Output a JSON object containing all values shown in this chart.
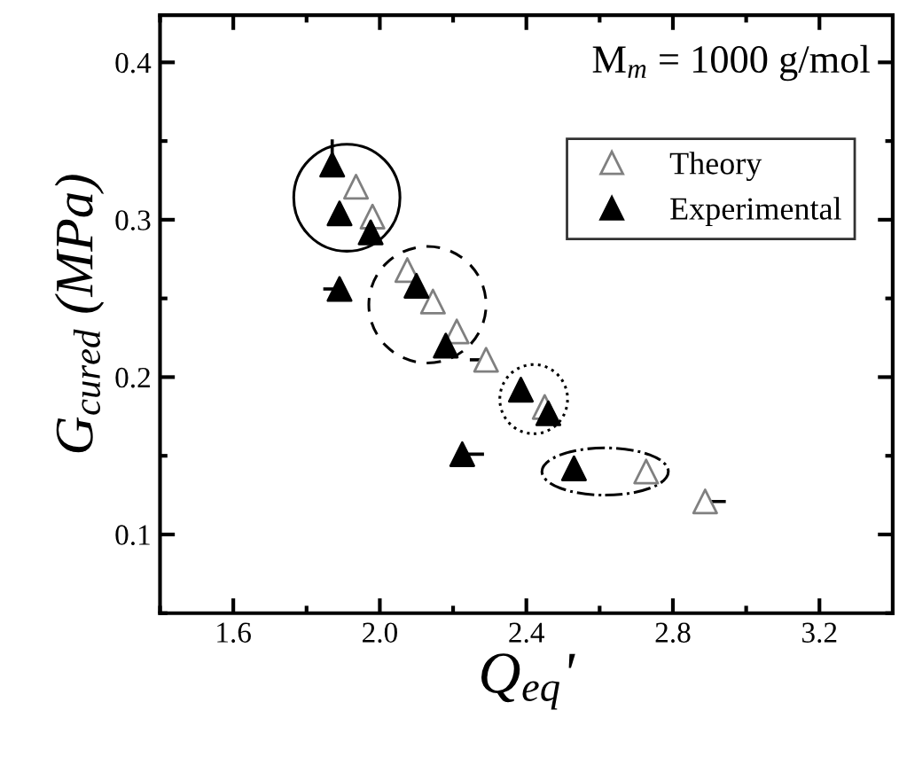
{
  "chart_data": {
    "type": "scatter",
    "xlabel": "Q$_{eq}$'",
    "ylabel": "G$_{cured}$ (MPa)",
    "annotations": [
      "M$_{m}$ = 1000 g/mol"
    ],
    "xlim": [
      1.4,
      3.4
    ],
    "ylim": [
      0.05,
      0.43
    ],
    "xticks": [
      1.6,
      {
        "value": 2.0,
        "label": "2.0"
      },
      2.4,
      2.8,
      3.2
    ],
    "yticks": [
      0.1,
      0.2,
      0.3,
      0.4
    ],
    "grid": false,
    "legend": "top right",
    "marker": "triangle",
    "series": [
      {
        "name": "Theory",
        "color": "#808080",
        "x": [
          1.935,
          1.98,
          2.075,
          2.145,
          2.21,
          2.29,
          2.45,
          2.727,
          2.888
        ],
        "values": [
          0.321,
          0.302,
          0.268,
          0.248,
          0.229,
          0.211,
          0.181,
          0.14,
          0.121
        ],
        "xerrors": [
          null,
          null,
          null,
          null,
          null,
          [
            2.25,
            2.29
          ],
          null,
          null,
          [
            2.888,
            2.94
          ]
        ]
      },
      {
        "name": "Experimental",
        "color": "#000000",
        "x": [
          1.87,
          1.89,
          1.975,
          1.89,
          2.1,
          2.18,
          2.225,
          2.385,
          2.46,
          2.53
        ],
        "values": [
          0.335,
          0.304,
          0.292,
          0.256,
          0.258,
          0.22,
          0.151,
          0.192,
          0.177,
          0.142
        ],
        "errors": [
          [
            0.335,
            0.35
          ],
          null,
          null,
          null,
          null,
          null,
          null,
          null,
          null,
          null
        ],
        "xerrors": [
          null,
          null,
          null,
          [
            1.85,
            1.89
          ],
          null,
          null,
          [
            2.225,
            2.28
          ],
          null,
          null,
          null
        ]
      }
    ]
  }
}
